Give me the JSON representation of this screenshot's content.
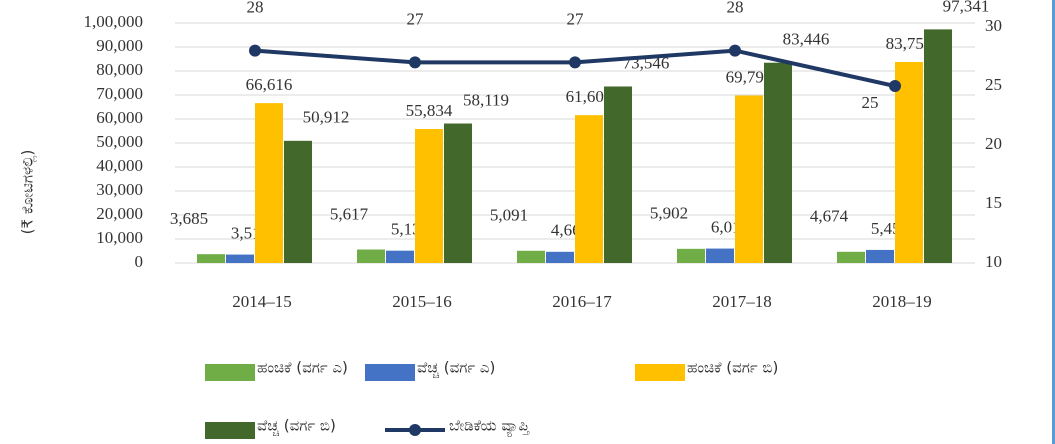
{
  "chart_data": {
    "type": "bar",
    "y_label": "(₹ ಕೋಟಿಗಳಲ್ಲಿ)",
    "categories": [
      "2014–15",
      "2015–16",
      "2016–17",
      "2017–18",
      "2018–19"
    ],
    "ylim": [
      0,
      100000
    ],
    "yticks": [
      0,
      {
        "value": 10000,
        "label": "10,000"
      },
      {
        "value": 20000,
        "label": "20,000"
      },
      {
        "value": 30000,
        "label": "30,000"
      },
      {
        "value": 40000,
        "label": "40,000"
      },
      {
        "value": 50000,
        "label": "50,000"
      },
      {
        "value": 60000,
        "label": "60,000"
      },
      {
        "value": 70000,
        "label": "70,000"
      },
      {
        "value": 80000,
        "label": "80,000"
      },
      {
        "value": 90000,
        "label": "90,000"
      },
      {
        "value": 100000,
        "label": "1,00,000"
      }
    ],
    "y2lim": [
      10,
      30
    ],
    "y2ticks": [
      10,
      15,
      20,
      25,
      30
    ],
    "series": [
      {
        "name": "ಹಂಚಿಕೆ (ವರ್ಗ ಎ)",
        "color": "#70ad47",
        "values": [
          3685,
          5617,
          5091,
          5902,
          4674
        ],
        "value_labels": [
          "3,685",
          "5,617",
          "5,091",
          "5,902",
          "4,674"
        ]
      },
      {
        "name": "ವೆಚ್ಚ (ವರ್ಗ ಎ)",
        "color": "#4472c4",
        "values": [
          3514,
          5135,
          4664,
          6013,
          5451
        ],
        "value_labels": [
          "3,514",
          "5,135",
          "4,664",
          "6,013",
          "5,451"
        ]
      },
      {
        "name": "ಹಂಚಿಕೆ (ವರ್ಗ ಬಿ)",
        "color": "#ffc000",
        "values": [
          66616,
          55834,
          61603,
          69791,
          83750
        ],
        "value_labels": [
          "66,616",
          "55,834",
          "61,603",
          "69,791",
          "83,750"
        ]
      },
      {
        "name": "ವೆಚ್ಚ (ವರ್ಗ ಬಿ)",
        "color": "#43682b",
        "values": [
          50912,
          58119,
          73546,
          83446,
          97341
        ],
        "value_labels": [
          "50,912",
          "58,119",
          "73,546",
          "83,446",
          "97,341"
        ]
      },
      {
        "name": "ಬೇಡಿಕೆಯ ವ್ಯಾಪ್ತಿ",
        "color": "#203864",
        "type": "line",
        "axis": "y2",
        "values": [
          28,
          27,
          27,
          28,
          25
        ]
      }
    ]
  }
}
